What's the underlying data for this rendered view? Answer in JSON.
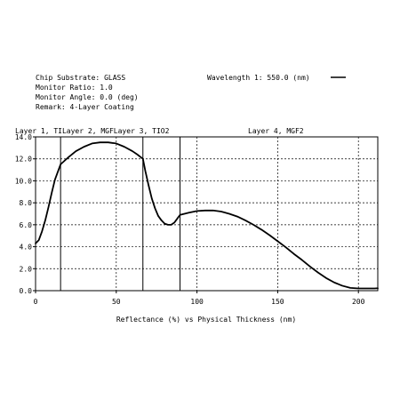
{
  "header": {
    "substrate": "Chip Substrate: GLASS",
    "monitor_ratio": "Monitor Ratio:  1.0",
    "monitor_angle": "Monitor Angle:  0.0 (deg)",
    "remark": "Remark: 4-Layer Coating",
    "wavelength": "Wavelength 1: 550.0 (nm)"
  },
  "layers_text": {
    "first": "Layer 1, TILayer 2, MGFLayer 3, TIO2",
    "last": "Layer 4, MGF2"
  },
  "chart_data": {
    "type": "line",
    "xlabel": "Reflectance (%)  vs  Physical Thickness (nm)",
    "ylabel": "",
    "xlim": [
      0,
      212
    ],
    "ylim": [
      0,
      14
    ],
    "x_ticks": [
      0,
      50,
      100,
      150,
      200
    ],
    "y_ticks": [
      0.0,
      2.0,
      4.0,
      6.0,
      8.0,
      10.0,
      12.0,
      14.0
    ],
    "x_tick_labels": [
      "0",
      "50",
      "100",
      "150",
      "200"
    ],
    "y_tick_labels": [
      "0.0",
      "2.0",
      "4.0",
      "6.0",
      "8.0",
      "10.0",
      "12.0",
      "14.0"
    ],
    "grid": true,
    "legend": {
      "position": "top-right",
      "entries": [
        "Wavelength 1: 550.0 (nm)"
      ]
    },
    "layer_boundaries": [
      15.5,
      66.5,
      89.5
    ],
    "series": [
      {
        "name": "Wavelength 1: 550.0 (nm)",
        "x": [
          0,
          2,
          4,
          6,
          8,
          10,
          12,
          14,
          15.5,
          20,
          25,
          30,
          35,
          40,
          45,
          50,
          55,
          60,
          63,
          66.5,
          68,
          70,
          72,
          74,
          76,
          78,
          80,
          82,
          84,
          86,
          88,
          89.5,
          95,
          100,
          105,
          110,
          115,
          120,
          125,
          130,
          135,
          140,
          145,
          150,
          155,
          160,
          165,
          170,
          175,
          180,
          185,
          190,
          195,
          200,
          205,
          210,
          212
        ],
        "values": [
          4.3,
          4.6,
          5.4,
          6.4,
          7.6,
          8.9,
          10.1,
          10.9,
          11.5,
          12.1,
          12.7,
          13.1,
          13.4,
          13.5,
          13.5,
          13.4,
          13.1,
          12.7,
          12.4,
          12.0,
          10.9,
          9.6,
          8.4,
          7.5,
          6.8,
          6.4,
          6.1,
          6.0,
          6.0,
          6.2,
          6.6,
          6.9,
          7.1,
          7.25,
          7.3,
          7.3,
          7.2,
          7.0,
          6.75,
          6.4,
          6.0,
          5.55,
          5.05,
          4.5,
          3.95,
          3.35,
          2.8,
          2.2,
          1.65,
          1.15,
          0.75,
          0.45,
          0.25,
          0.2,
          0.2,
          0.2,
          0.22
        ]
      }
    ]
  }
}
